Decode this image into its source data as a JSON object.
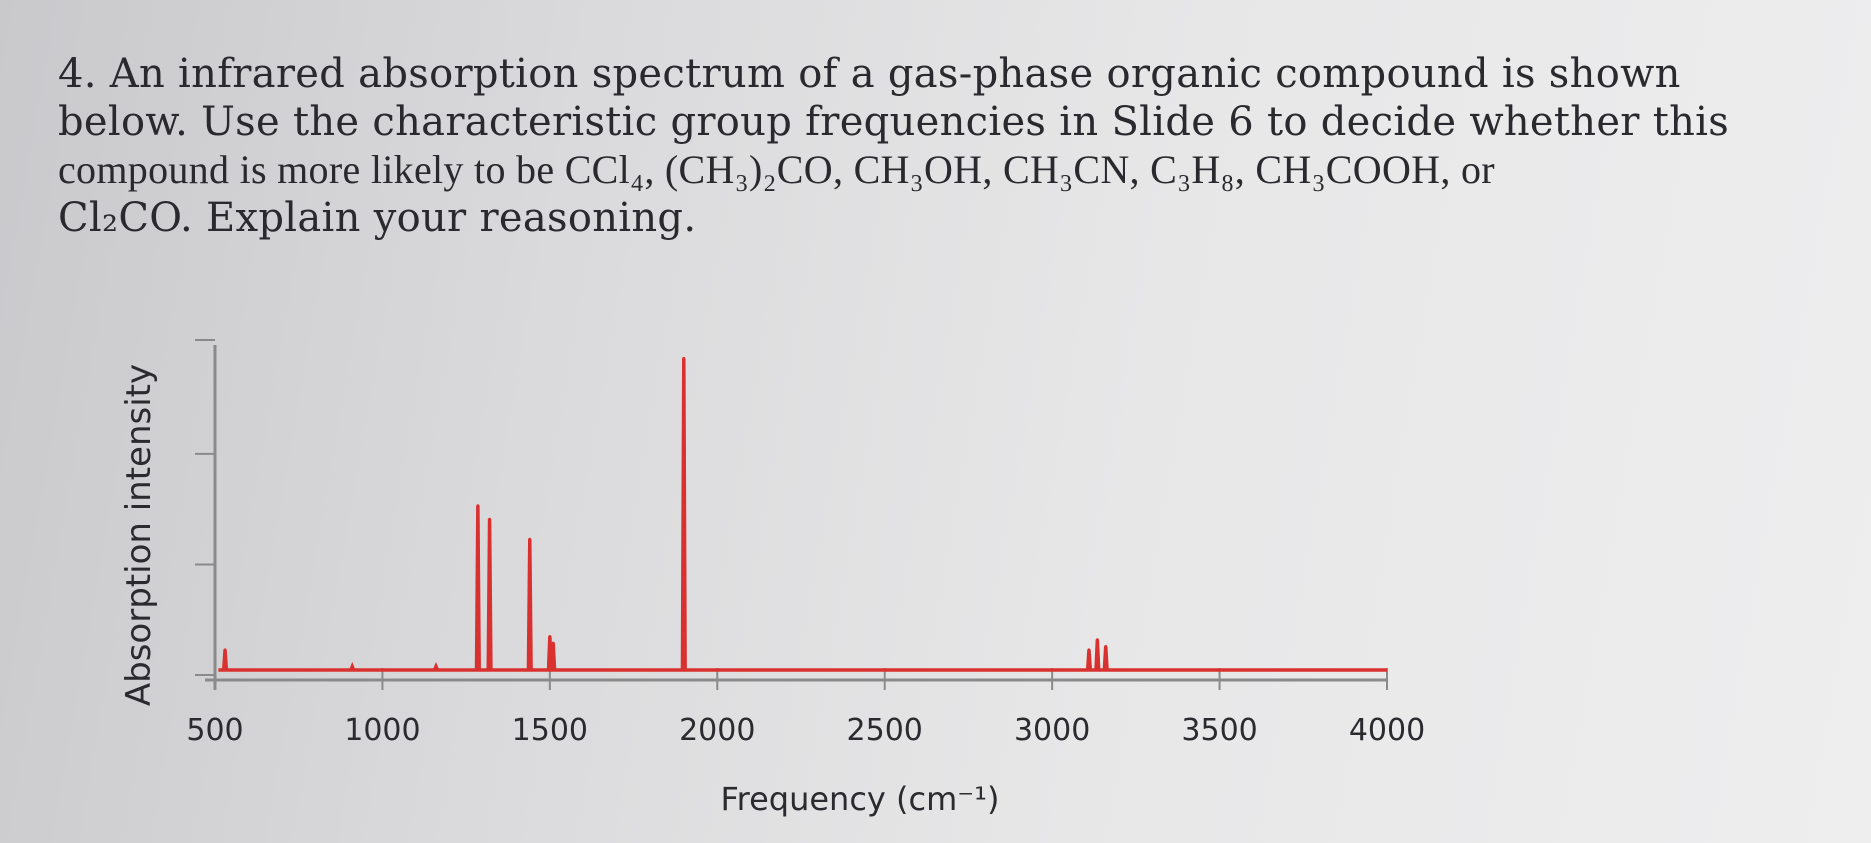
{
  "question": {
    "lines": [
      "4. An infrared absorption spectrum of a gas-phase organic compound is shown",
      "below. Use the characteristic group frequencies in Slide 6 to decide whether this",
      "compound is more likely to be CCl₄, (CH₃)₂CO, CH₃OH, CH₃CN, C₃H₈, CH₃COOH, or",
      "Cl₂CO. Explain your reasoning."
    ]
  },
  "chart_data": {
    "type": "line",
    "title": "",
    "xlabel": "Frequency (cm⁻¹)",
    "ylabel": "Absorption intensity",
    "xlim": [
      500,
      4000
    ],
    "ylim": [
      0,
      1.0
    ],
    "xticks": [
      500,
      1000,
      1500,
      2000,
      2500,
      3000,
      3500,
      4000
    ],
    "xtick_labels": [
      "500",
      "1000",
      "1500",
      "2000",
      "2500",
      "3000",
      "3500",
      "4000"
    ],
    "grid": false,
    "series_color": "#d9312f",
    "axis_color": "#8a8a8a",
    "baseline": 0.03,
    "peaks": [
      {
        "x": 530,
        "y": 0.09
      },
      {
        "x": 910,
        "y": 0.04
      },
      {
        "x": 1160,
        "y": 0.04
      },
      {
        "x": 1285,
        "y": 0.52
      },
      {
        "x": 1320,
        "y": 0.48
      },
      {
        "x": 1440,
        "y": 0.42
      },
      {
        "x": 1500,
        "y": 0.13
      },
      {
        "x": 1510,
        "y": 0.11
      },
      {
        "x": 1900,
        "y": 0.96
      },
      {
        "x": 3110,
        "y": 0.09
      },
      {
        "x": 3135,
        "y": 0.12
      },
      {
        "x": 3160,
        "y": 0.1
      }
    ]
  }
}
